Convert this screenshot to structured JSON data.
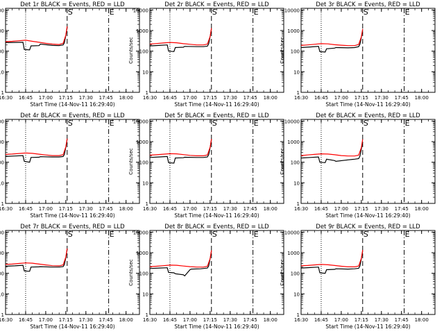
{
  "chart_data": [
    {
      "type": "line",
      "title": "Det 1r BLACK = Events, RED = LLD",
      "xlabel": "Start Time (14-Nov-11 16:29:40)",
      "ylabel": "Counts/sec",
      "yscale": "log",
      "ylim": [
        1,
        12000
      ],
      "xlim": [
        "16:30",
        "18:10"
      ],
      "xticks": [
        "16:30",
        "16:45",
        "17:00",
        "17:15",
        "17:30",
        "17:45",
        "18:00"
      ],
      "yticks": [
        "1",
        "10",
        "100",
        "1000",
        "10000"
      ],
      "markers": [
        {
          "label": "",
          "x": "16:45",
          "style": "dotted"
        },
        {
          "label": "S",
          "x": "17:16",
          "style": "dashed"
        },
        {
          "label": "E",
          "x": "17:47",
          "style": "dashdot"
        }
      ],
      "series": [
        {
          "name": "Events",
          "color": "#000000",
          "x": [
            "16:30",
            "16:37",
            "16:43",
            "16:44",
            "16:48",
            "16:49",
            "16:55",
            "16:56",
            "17:05",
            "17:10",
            "17:13",
            "17:14",
            "17:15",
            "17:16"
          ],
          "values": [
            260,
            265,
            270,
            120,
            115,
            180,
            185,
            220,
            190,
            185,
            200,
            260,
            600,
            1400
          ]
        },
        {
          "name": "LLD",
          "color": "#ff0000",
          "x": [
            "16:30",
            "16:35",
            "16:40",
            "16:45",
            "16:50",
            "16:55",
            "17:00",
            "17:05",
            "17:10",
            "17:13",
            "17:15",
            "17:16"
          ],
          "values": [
            290,
            300,
            320,
            340,
            300,
            270,
            240,
            220,
            210,
            240,
            600,
            1600
          ]
        }
      ]
    },
    {
      "type": "line",
      "title": "Det 2r BLACK = Events, RED = LLD",
      "xlabel": "Start Time (14-Nov-11 16:29:40)",
      "ylabel": "Counts/sec",
      "yscale": "log",
      "ylim": [
        1,
        12000
      ],
      "xlim": [
        "16:30",
        "18:10"
      ],
      "xticks": [
        "16:30",
        "16:45",
        "17:00",
        "17:15",
        "17:30",
        "17:45",
        "18:00"
      ],
      "yticks": [
        "1",
        "10",
        "100",
        "1000",
        "10000"
      ],
      "markers": [
        {
          "label": "",
          "x": "16:45",
          "style": "dotted"
        },
        {
          "label": "S",
          "x": "17:16",
          "style": "dashed"
        },
        {
          "label": "E",
          "x": "17:47",
          "style": "dashdot"
        }
      ],
      "series": [
        {
          "name": "Events",
          "color": "#000000",
          "x": [
            "16:30",
            "16:37",
            "16:43",
            "16:44",
            "16:48",
            "16:49",
            "16:55",
            "16:56",
            "17:05",
            "17:10",
            "17:13",
            "17:14",
            "17:15",
            "17:16"
          ],
          "values": [
            180,
            190,
            200,
            100,
            95,
            150,
            155,
            170,
            165,
            165,
            175,
            230,
            520,
            1200
          ]
        },
        {
          "name": "LLD",
          "color": "#ff0000",
          "x": [
            "16:30",
            "16:35",
            "16:40",
            "16:45",
            "16:50",
            "16:55",
            "17:00",
            "17:05",
            "17:10",
            "17:13",
            "17:15",
            "17:16"
          ],
          "values": [
            220,
            235,
            250,
            265,
            255,
            230,
            215,
            200,
            200,
            220,
            520,
            1300
          ]
        }
      ]
    },
    {
      "type": "line",
      "title": "Det 3r BLACK = Events, RED = LLD",
      "xlabel": "Start Time (14-Nov-11 16:29:40)",
      "ylabel": "Counts/sec",
      "yscale": "log",
      "ylim": [
        1,
        12000
      ],
      "xlim": [
        "16:30",
        "18:10"
      ],
      "xticks": [
        "16:30",
        "16:45",
        "17:00",
        "17:15",
        "17:30",
        "17:45",
        "18:00"
      ],
      "yticks": [
        "1",
        "10",
        "100",
        "1000",
        "10000"
      ],
      "markers": [
        {
          "label": "",
          "x": "16:45",
          "style": "dotted"
        },
        {
          "label": "S",
          "x": "17:16",
          "style": "dashed"
        },
        {
          "label": "E",
          "x": "17:47",
          "style": "dashdot"
        }
      ],
      "series": [
        {
          "name": "Events",
          "color": "#000000",
          "x": [
            "16:30",
            "16:37",
            "16:43",
            "16:44",
            "16:48",
            "16:49",
            "16:55",
            "16:56",
            "17:05",
            "17:10",
            "17:13",
            "17:14",
            "17:15",
            "17:16"
          ],
          "values": [
            150,
            160,
            170,
            95,
            90,
            130,
            140,
            150,
            145,
            150,
            165,
            220,
            480,
            1100
          ]
        },
        {
          "name": "LLD",
          "color": "#ff0000",
          "x": [
            "16:30",
            "16:35",
            "16:40",
            "16:45",
            "16:50",
            "16:55",
            "17:00",
            "17:05",
            "17:10",
            "17:13",
            "17:15",
            "17:16"
          ],
          "values": [
            190,
            200,
            215,
            230,
            225,
            205,
            195,
            185,
            185,
            210,
            500,
            1200
          ]
        }
      ]
    },
    {
      "type": "line",
      "title": "Det 4r BLACK = Events, RED = LLD",
      "xlabel": "Start Time (14-Nov-11 16:29:40)",
      "ylabel": "Counts/sec",
      "yscale": "log",
      "ylim": [
        1,
        12000
      ],
      "xlim": [
        "16:30",
        "18:10"
      ],
      "xticks": [
        "16:30",
        "16:45",
        "17:00",
        "17:15",
        "17:30",
        "17:45",
        "18:00"
      ],
      "yticks": [
        "1",
        "10",
        "100",
        "1000",
        "10000"
      ],
      "markers": [
        {
          "label": "",
          "x": "16:45",
          "style": "dotted"
        },
        {
          "label": "S",
          "x": "17:16",
          "style": "dashed"
        },
        {
          "label": "E",
          "x": "17:47",
          "style": "dashdot"
        }
      ],
      "series": [
        {
          "name": "Events",
          "color": "#000000",
          "x": [
            "16:30",
            "16:37",
            "16:43",
            "16:44",
            "16:48",
            "16:49",
            "16:55",
            "16:56",
            "17:05",
            "17:10",
            "17:13",
            "17:14",
            "17:15",
            "17:16"
          ],
          "values": [
            190,
            200,
            210,
            110,
            100,
            170,
            175,
            185,
            180,
            180,
            190,
            240,
            550,
            1300
          ]
        },
        {
          "name": "LLD",
          "color": "#ff0000",
          "x": [
            "16:30",
            "16:35",
            "16:40",
            "16:45",
            "16:50",
            "16:55",
            "17:00",
            "17:05",
            "17:10",
            "17:13",
            "17:15",
            "17:16"
          ],
          "values": [
            240,
            250,
            265,
            280,
            270,
            245,
            225,
            210,
            210,
            230,
            560,
            1400
          ]
        }
      ]
    },
    {
      "type": "line",
      "title": "Det 5r BLACK = Events, RED = LLD",
      "xlabel": "Start Time (14-Nov-11 16:29:40)",
      "ylabel": "Counts/sec",
      "yscale": "log",
      "ylim": [
        1,
        12000
      ],
      "xlim": [
        "16:30",
        "18:10"
      ],
      "xticks": [
        "16:30",
        "16:45",
        "17:00",
        "17:15",
        "17:30",
        "17:45",
        "18:00"
      ],
      "yticks": [
        "1",
        "10",
        "100",
        "1000",
        "10000"
      ],
      "markers": [
        {
          "label": "",
          "x": "16:45",
          "style": "dotted"
        },
        {
          "label": "S",
          "x": "17:16",
          "style": "dashed"
        },
        {
          "label": "E",
          "x": "17:47",
          "style": "dashdot"
        }
      ],
      "series": [
        {
          "name": "Events",
          "color": "#000000",
          "x": [
            "16:30",
            "16:37",
            "16:43",
            "16:44",
            "16:48",
            "16:49",
            "16:55",
            "16:56",
            "17:05",
            "17:10",
            "17:13",
            "17:14",
            "17:15",
            "17:16"
          ],
          "values": [
            170,
            180,
            190,
            95,
            90,
            160,
            165,
            175,
            170,
            170,
            180,
            235,
            520,
            1250
          ]
        },
        {
          "name": "LLD",
          "color": "#ff0000",
          "x": [
            "16:30",
            "16:35",
            "16:40",
            "16:45",
            "16:50",
            "16:55",
            "17:00",
            "17:05",
            "17:10",
            "17:13",
            "17:15",
            "17:16"
          ],
          "values": [
            220,
            230,
            245,
            260,
            255,
            235,
            215,
            205,
            205,
            225,
            540,
            1350
          ]
        }
      ]
    },
    {
      "type": "line",
      "title": "Det 6r BLACK = Events, RED = LLD",
      "xlabel": "Start Time (14-Nov-11 16:29:40)",
      "ylabel": "Counts/sec",
      "yscale": "log",
      "ylim": [
        1,
        12000
      ],
      "xlim": [
        "16:30",
        "18:10"
      ],
      "xticks": [
        "16:30",
        "16:45",
        "17:00",
        "17:15",
        "17:30",
        "17:45",
        "18:00"
      ],
      "yticks": [
        "1",
        "10",
        "100",
        "1000",
        "10000"
      ],
      "markers": [
        {
          "label": "",
          "x": "16:45",
          "style": "dotted"
        },
        {
          "label": "S",
          "x": "17:16",
          "style": "dashed"
        },
        {
          "label": "E",
          "x": "17:47",
          "style": "dashdot"
        }
      ],
      "series": [
        {
          "name": "Events",
          "color": "#000000",
          "x": [
            "16:30",
            "16:37",
            "16:43",
            "16:44",
            "16:48",
            "16:49",
            "16:55",
            "16:56",
            "17:05",
            "17:10",
            "17:13",
            "17:14",
            "17:15",
            "17:16"
          ],
          "values": [
            160,
            170,
            180,
            100,
            95,
            140,
            120,
            110,
            130,
            140,
            150,
            200,
            450,
            1000
          ]
        },
        {
          "name": "LLD",
          "color": "#ff0000",
          "x": [
            "16:30",
            "16:35",
            "16:40",
            "16:45",
            "16:50",
            "16:55",
            "17:00",
            "17:05",
            "17:10",
            "17:13",
            "17:15",
            "17:16"
          ],
          "values": [
            210,
            225,
            240,
            255,
            250,
            230,
            210,
            200,
            200,
            220,
            520,
            1300
          ]
        }
      ]
    },
    {
      "type": "line",
      "title": "Det 7r BLACK = Events, RED = LLD",
      "xlabel": "Start Time (14-Nov-11 16:29:40)",
      "ylabel": "Counts/sec",
      "yscale": "log",
      "ylim": [
        1,
        12000
      ],
      "xlim": [
        "16:30",
        "18:10"
      ],
      "xticks": [
        "16:30",
        "16:45",
        "17:00",
        "17:15",
        "17:30",
        "17:45",
        "18:00"
      ],
      "yticks": [
        "1",
        "10",
        "100",
        "1000",
        "10000"
      ],
      "markers": [
        {
          "label": "",
          "x": "16:45",
          "style": "dotted"
        },
        {
          "label": "S",
          "x": "17:16",
          "style": "dashed"
        },
        {
          "label": "E",
          "x": "17:47",
          "style": "dashdot"
        }
      ],
      "series": [
        {
          "name": "Events",
          "color": "#000000",
          "x": [
            "16:30",
            "16:37",
            "16:43",
            "16:44",
            "16:48",
            "16:49",
            "16:55",
            "16:56",
            "17:05",
            "17:10",
            "17:13",
            "17:14",
            "17:15",
            "17:16"
          ],
          "values": [
            220,
            230,
            245,
            130,
            125,
            200,
            205,
            210,
            200,
            200,
            210,
            270,
            600,
            1500
          ]
        },
        {
          "name": "LLD",
          "color": "#ff0000",
          "x": [
            "16:30",
            "16:35",
            "16:40",
            "16:45",
            "16:50",
            "16:55",
            "17:00",
            "17:05",
            "17:10",
            "17:13",
            "17:15",
            "17:16"
          ],
          "values": [
            270,
            280,
            300,
            320,
            310,
            280,
            255,
            235,
            230,
            255,
            620,
            1600
          ]
        }
      ]
    },
    {
      "type": "line",
      "title": "Det 8r BLACK = Events, RED = LLD",
      "xlabel": "Start Time (14-Nov-11 16:29:40)",
      "ylabel": "Counts/sec",
      "yscale": "log",
      "ylim": [
        1,
        12000
      ],
      "xlim": [
        "16:30",
        "18:10"
      ],
      "xticks": [
        "16:30",
        "16:45",
        "17:00",
        "17:15",
        "17:30",
        "17:45",
        "18:00"
      ],
      "yticks": [
        "1",
        "10",
        "100",
        "1000",
        "10000"
      ],
      "markers": [
        {
          "label": "",
          "x": "16:45",
          "style": "dotted"
        },
        {
          "label": "S",
          "x": "17:16",
          "style": "dashed"
        },
        {
          "label": "E",
          "x": "17:47",
          "style": "dashdot"
        }
      ],
      "series": [
        {
          "name": "Events",
          "color": "#000000",
          "x": [
            "16:30",
            "16:37",
            "16:43",
            "16:44",
            "16:48",
            "16:49",
            "16:55",
            "16:56",
            "17:00",
            "17:01",
            "17:08",
            "17:13",
            "17:14",
            "17:15",
            "17:16"
          ],
          "values": [
            170,
            180,
            185,
            110,
            105,
            95,
            85,
            75,
            150,
            160,
            165,
            180,
            230,
            520,
            1200
          ]
        },
        {
          "name": "LLD",
          "color": "#ff0000",
          "x": [
            "16:30",
            "16:35",
            "16:40",
            "16:45",
            "16:50",
            "16:55",
            "17:00",
            "17:05",
            "17:10",
            "17:13",
            "17:15",
            "17:16"
          ],
          "values": [
            210,
            220,
            235,
            250,
            245,
            225,
            210,
            200,
            200,
            220,
            520,
            1300
          ]
        }
      ]
    },
    {
      "type": "line",
      "title": "Det 9r BLACK = Events, RED = LLD",
      "xlabel": "Start Time (14-Nov-11 16:29:40)",
      "ylabel": "Counts/sec",
      "yscale": "log",
      "ylim": [
        1,
        12000
      ],
      "xlim": [
        "16:30",
        "18:10"
      ],
      "xticks": [
        "16:30",
        "16:45",
        "17:00",
        "17:15",
        "17:30",
        "17:45",
        "18:00"
      ],
      "yticks": [
        "1",
        "10",
        "100",
        "1000",
        "10000"
      ],
      "markers": [
        {
          "label": "",
          "x": "16:45",
          "style": "dotted"
        },
        {
          "label": "S",
          "x": "17:16",
          "style": "dashed"
        },
        {
          "label": "E",
          "x": "17:47",
          "style": "dashdot"
        }
      ],
      "series": [
        {
          "name": "Events",
          "color": "#000000",
          "x": [
            "16:30",
            "16:37",
            "16:43",
            "16:44",
            "16:48",
            "16:49",
            "16:55",
            "16:56",
            "17:05",
            "17:10",
            "17:13",
            "17:14",
            "17:15",
            "17:16"
          ],
          "values": [
            180,
            190,
            200,
            105,
            100,
            150,
            155,
            165,
            160,
            165,
            175,
            230,
            520,
            1200
          ]
        },
        {
          "name": "LLD",
          "color": "#ff0000",
          "x": [
            "16:30",
            "16:35",
            "16:40",
            "16:45",
            "16:50",
            "16:55",
            "17:00",
            "17:05",
            "17:10",
            "17:13",
            "17:15",
            "17:16"
          ],
          "values": [
            230,
            240,
            255,
            270,
            260,
            240,
            220,
            205,
            205,
            225,
            540,
            1350
          ]
        }
      ]
    }
  ]
}
